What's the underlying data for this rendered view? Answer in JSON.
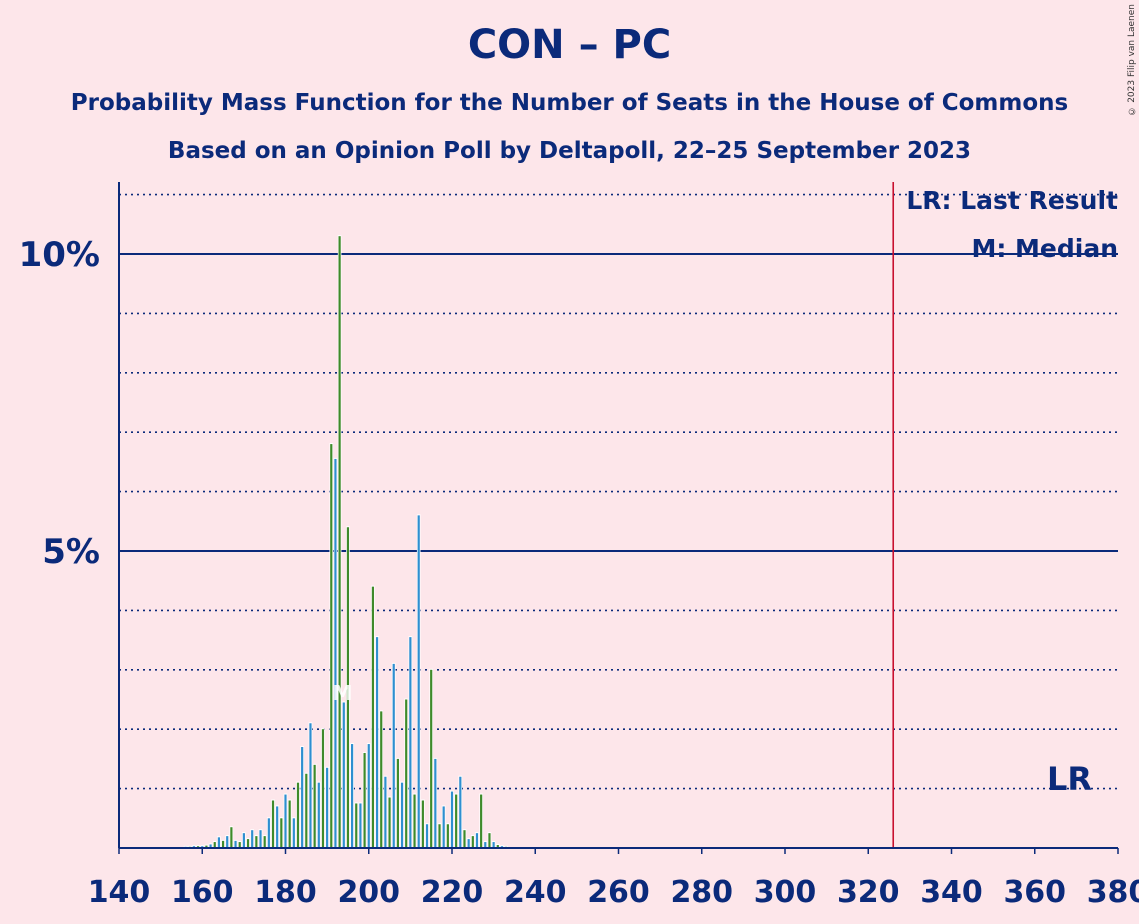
{
  "title": "CON – PC",
  "subtitle": "Probability Mass Function for the Number of Seats in the House of Commons",
  "subtitle2": "Based on an Opinion Poll by Deltapoll, 22–25 September 2023",
  "copyright": "© 2023 Filip van Laenen",
  "colors": {
    "background": "#fde6ea",
    "text": "#0b2a7a",
    "bar_blue": "#2f8fd0",
    "bar_green": "#3f8a2a",
    "last_result_line": "#c8102e"
  },
  "chart_data": {
    "type": "bar",
    "xlabel": "",
    "ylabel": "",
    "xlim": [
      140,
      380
    ],
    "ylim": [
      0,
      11.2
    ],
    "x_ticks": [
      "140",
      "160",
      "180",
      "200",
      "220",
      "240",
      "260",
      "280",
      "300",
      "320",
      "340",
      "360",
      "380"
    ],
    "y_ticks": [
      {
        "value": 5,
        "label": "5%"
      },
      {
        "value": 10,
        "label": "10%"
      }
    ],
    "grid": "dotted every 1%, solid at 5% and 10%",
    "last_result": 326,
    "median": 193,
    "legend": {
      "position": "top-right",
      "entries": [
        "LR: Last Result",
        "M: Median"
      ]
    },
    "lr_label": "LR",
    "median_label": "M",
    "x": [
      156,
      157,
      158,
      159,
      160,
      161,
      162,
      163,
      164,
      165,
      166,
      167,
      168,
      169,
      170,
      171,
      172,
      173,
      174,
      175,
      176,
      177,
      178,
      179,
      180,
      181,
      182,
      183,
      184,
      185,
      186,
      187,
      188,
      189,
      190,
      191,
      192,
      193,
      194,
      195,
      196,
      197,
      198,
      199,
      200,
      201,
      202,
      203,
      204,
      205,
      206,
      207,
      208,
      209,
      210,
      211,
      212,
      213,
      214,
      215,
      216,
      217,
      218,
      219,
      220,
      221,
      222,
      223,
      224,
      225,
      226,
      227,
      228,
      229,
      230,
      231,
      232,
      233
    ],
    "values": [
      0.02,
      0.02,
      0.03,
      0.03,
      0.03,
      0.04,
      0.06,
      0.1,
      0.18,
      0.12,
      0.2,
      0.35,
      0.12,
      0.1,
      0.25,
      0.15,
      0.3,
      0.2,
      0.3,
      0.2,
      0.5,
      0.8,
      0.7,
      0.5,
      0.9,
      0.8,
      0.5,
      1.1,
      1.7,
      1.25,
      2.1,
      1.4,
      1.1,
      2.0,
      1.35,
      6.8,
      6.55,
      10.3,
      2.45,
      5.4,
      1.75,
      0.75,
      0.75,
      1.6,
      1.75,
      4.4,
      3.55,
      2.3,
      1.2,
      0.85,
      3.1,
      1.5,
      1.1,
      2.5,
      3.55,
      0.9,
      5.6,
      0.8,
      0.4,
      3.0,
      1.5,
      0.4,
      0.7,
      0.4,
      0.95,
      0.9,
      1.2,
      0.3,
      0.15,
      0.2,
      0.25,
      0.9,
      0.1,
      0.25,
      0.1,
      0.05,
      0.03,
      0.02
    ]
  }
}
